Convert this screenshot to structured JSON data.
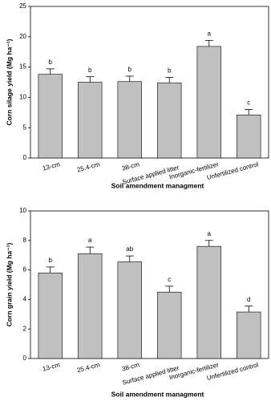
{
  "chart_data": [
    {
      "type": "bar",
      "y_label": "Corn silage yield (Mg ha⁻¹)",
      "x_label": "Soil amendment managment",
      "categories": [
        "13-cm",
        "25.4-cm",
        "38-cm",
        "Surface applied litter",
        "Inorganic-fertilizer",
        "Unfertilized control"
      ],
      "values": [
        13.8,
        12.5,
        12.6,
        12.4,
        18.4,
        7.1
      ],
      "errors": [
        0.9,
        0.9,
        0.9,
        0.9,
        1.0,
        0.9
      ],
      "letters": [
        "b",
        "b",
        "b",
        "b",
        "a",
        "c"
      ],
      "color": "#c0c0c0",
      "ylim": [
        0,
        25
      ],
      "yticks": [
        0,
        5,
        10,
        15,
        20,
        25
      ]
    },
    {
      "type": "bar",
      "y_label": "Corn grain yield (Mg ha⁻¹)",
      "x_label": "Soil amendment managment",
      "categories": [
        "13-cm",
        "25.4-cm",
        "38-cm",
        "Surface applied litter",
        "Inorganic-fertilizer",
        "Unfertilized control"
      ],
      "values": [
        5.8,
        7.1,
        6.55,
        4.5,
        7.6,
        3.15
      ],
      "errors": [
        0.4,
        0.45,
        0.4,
        0.4,
        0.4,
        0.4
      ],
      "letters": [
        "b",
        "a",
        "ab",
        "c",
        "a",
        "d"
      ],
      "color": "#c0c0c0",
      "ylim": [
        0,
        10
      ],
      "yticks": [
        0,
        2,
        4,
        6,
        8,
        10
      ]
    }
  ]
}
